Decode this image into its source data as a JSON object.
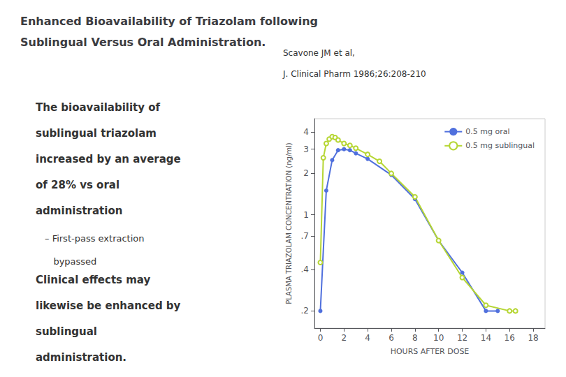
{
  "chart_data": {
    "type": "line",
    "title": "Enhanced Bioavailability of Triazolam following\nSublingual Versus Oral Administration.",
    "annotations": [
      [
        "Scavone JM et al,",
        "J. Clinical Pharm 1986;26:208-210"
      ],
      [
        "The bioavailability of",
        "sublingual triazolam",
        "increased by an average",
        "of 28% vs oral",
        "administration"
      ],
      [
        "– First-pass extraction",
        "   bypassed"
      ],
      [
        "Clinical effects may",
        "likewise be enhanced by",
        "sublingual",
        "administration."
      ]
    ],
    "xlabel": "HOURS AFTER DOSE",
    "ylabel": "PLASMA TRIAZOLAM CONCENTRATION (ng/ml)",
    "series": [
      {
        "name": "0.5 mg oral",
        "marker": "circle",
        "x": [
          0,
          0.5,
          1.0,
          1.5,
          2.0,
          2.5,
          3.0,
          4.0,
          6.0,
          8.0,
          10.0,
          12.0,
          14.0,
          15.0
        ],
        "values": [
          0.2,
          1.5,
          2.5,
          2.95,
          3.0,
          2.95,
          2.8,
          2.55,
          1.95,
          1.3,
          0.65,
          0.38,
          0.2,
          0.2
        ]
      },
      {
        "name": "0.5 mg sublingual",
        "marker": "open_circle",
        "x": [
          0,
          0.25,
          0.5,
          0.75,
          1.0,
          1.25,
          1.5,
          2.0,
          2.5,
          3.0,
          4.0,
          5.0,
          6.0,
          8.0,
          10.0,
          12.0,
          14.0,
          16.0,
          16.5
        ],
        "values": [
          0.45,
          2.6,
          3.3,
          3.55,
          3.7,
          3.65,
          3.5,
          3.3,
          3.2,
          3.05,
          2.75,
          2.45,
          2.0,
          1.35,
          0.65,
          0.35,
          0.22,
          0.2,
          0.2
        ]
      }
    ],
    "log": "y",
    "xlim": [
      -0.5,
      19
    ],
    "xticks": [
      0,
      2,
      4,
      6,
      8,
      10,
      12,
      14,
      16,
      18
    ],
    "ylim": [
      0.15,
      5.0
    ],
    "yticks": [
      {
        "value": 0.2,
        "label": ".2"
      },
      {
        "value": 0.4,
        "label": ".4"
      },
      {
        "value": 0.7,
        "label": ".7"
      },
      1,
      2,
      3,
      4
    ],
    "grid": false,
    "legend": "upper right"
  }
}
